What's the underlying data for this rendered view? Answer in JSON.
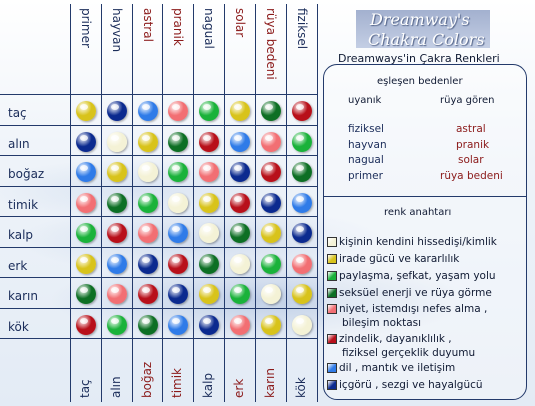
{
  "title": {
    "line1": "Dreamway's",
    "line2": "Chakra Colors"
  },
  "subtitle": "Dreamways'in Çakra Renkleri",
  "palette": {
    "white": "#f4f2d6",
    "yellow": "#d8c31b",
    "green": "#1ab23a",
    "darkgreen": "#0d6f24",
    "pink": "#f26f73",
    "red": "#b8101a",
    "lightblue": "#2f7be8",
    "darkblue": "#0b2a8f"
  },
  "grid": {
    "rows": [
      "taç",
      "alın",
      "boğaz",
      "timik",
      "kalp",
      "erk",
      "karın",
      "kök"
    ],
    "top_columns": [
      {
        "label": "primer",
        "color": "#1b2d5a"
      },
      {
        "label": "hayvan",
        "color": "#1b2d5a"
      },
      {
        "label": "astral",
        "color": "#8b1a1a"
      },
      {
        "label": "pranik",
        "color": "#8b1a1a"
      },
      {
        "label": "nagual",
        "color": "#1b2d5a"
      },
      {
        "label": "solar",
        "color": "#8b1a1a"
      },
      {
        "label": "rüya bedeni",
        "color": "#8b1a1a"
      },
      {
        "label": "fiziksel",
        "color": "#1b2d5a"
      }
    ],
    "bottom_columns": [
      {
        "label": "taç",
        "color": "#1b2d5a"
      },
      {
        "label": "alın",
        "color": "#1b2d5a"
      },
      {
        "label": "boğaz",
        "color": "#8b1a1a"
      },
      {
        "label": "timik",
        "color": "#8b1a1a"
      },
      {
        "label": "kalp",
        "color": "#1b2d5a"
      },
      {
        "label": "erk",
        "color": "#8b1a1a"
      },
      {
        "label": "karın",
        "color": "#8b1a1a"
      },
      {
        "label": "kök",
        "color": "#1b2d5a"
      }
    ],
    "cells": [
      [
        "yellow",
        "darkblue",
        "lightblue",
        "pink",
        "green",
        "yellow",
        "darkgreen",
        "red"
      ],
      [
        "darkblue",
        "white",
        "yellow",
        "darkgreen",
        "red",
        "lightblue",
        "pink",
        "green"
      ],
      [
        "lightblue",
        "yellow",
        "white",
        "green",
        "pink",
        "darkblue",
        "red",
        "darkgreen"
      ],
      [
        "pink",
        "darkgreen",
        "green",
        "white",
        "yellow",
        "red",
        "darkblue",
        "lightblue"
      ],
      [
        "green",
        "red",
        "pink",
        "lightblue",
        "white",
        "darkgreen",
        "yellow",
        "darkblue"
      ],
      [
        "yellow",
        "lightblue",
        "darkblue",
        "red",
        "darkgreen",
        "white",
        "green",
        "pink"
      ],
      [
        "darkgreen",
        "pink",
        "red",
        "darkblue",
        "yellow",
        "green",
        "white",
        "yellow"
      ],
      [
        "red",
        "green",
        "darkgreen",
        "lightblue",
        "darkblue",
        "pink",
        "yellow",
        "white"
      ]
    ]
  },
  "legend": {
    "match_heading": "eşleşen bedenler",
    "awake_heading": "uyanık",
    "dream_heading": "rüya gören",
    "awake_items": [
      "fiziksel",
      "hayvan",
      "nagual",
      "primer"
    ],
    "dream_items": [
      "astral",
      "pranik",
      "solar",
      "rüya bedeni"
    ],
    "key_heading": "renk anahtarı",
    "key_items": [
      {
        "color": "white",
        "text": "kişinin kendini hissedişi/kimlik"
      },
      {
        "color": "yellow",
        "text": "irade gücü ve kararlılık"
      },
      {
        "color": "green",
        "text": "paylaşma, şefkat, yaşam yolu"
      },
      {
        "color": "darkgreen",
        "text": "seksüel enerji ve rüya görme"
      },
      {
        "color": "pink",
        "text": "niyet, istemdışı nefes alma ,"
      },
      {
        "color": "pink_cont",
        "text": "bileşim noktası"
      },
      {
        "color": "red",
        "text": "zindelik, dayanıklılık ,"
      },
      {
        "color": "red_cont",
        "text": "fiziksel gerçeklik duyumu"
      },
      {
        "color": "lightblue",
        "text": "dil , mantık ve iletişim"
      },
      {
        "color": "darkblue",
        "text": "içgörü , sezgi ve hayalgücü"
      }
    ]
  }
}
